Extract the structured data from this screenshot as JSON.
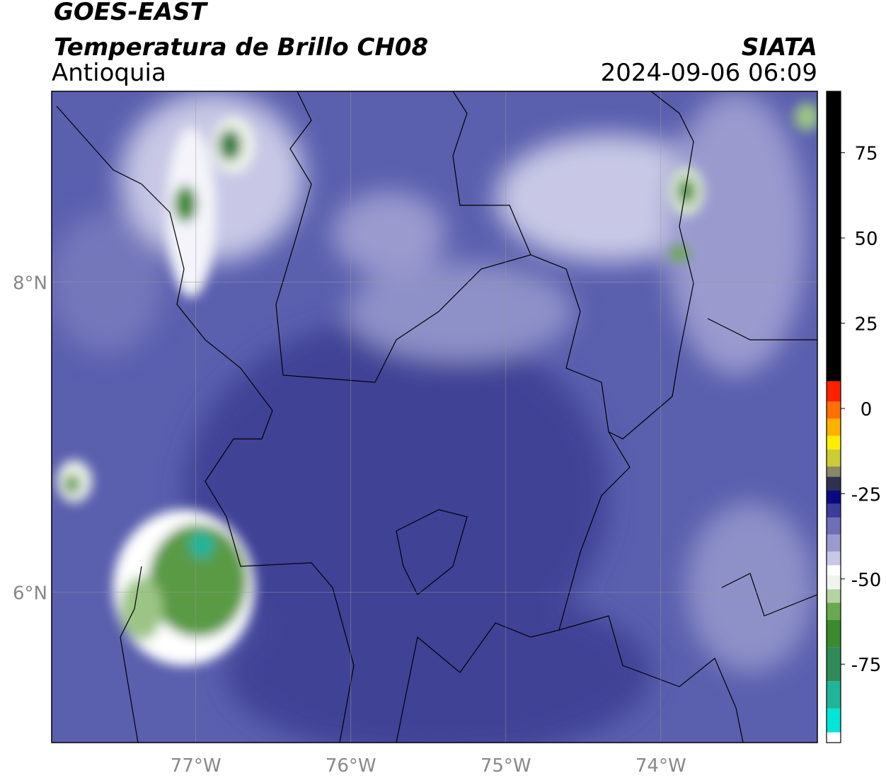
{
  "header": {
    "title": "GOES-EAST",
    "subtitle": "Temperatura de Brillo CH08",
    "region": "Antioquia",
    "source": "SIATA",
    "timestamp": "2024-09-06 06:09"
  },
  "map": {
    "lonlim": [
      -77.93,
      -72.99
    ],
    "latlim": [
      5.03,
      9.23
    ],
    "lonticks": [
      {
        "value": -77,
        "label": "77°W"
      },
      {
        "value": -76,
        "label": "76°W"
      },
      {
        "value": -75,
        "label": "75°W"
      },
      {
        "value": -74,
        "label": "74°W"
      }
    ],
    "latticks": [
      {
        "value": 8,
        "label": "8°N"
      },
      {
        "value": 6,
        "label": "6°N"
      }
    ],
    "grid": true
  },
  "colorbar": {
    "lim": [
      -98,
      93
    ],
    "ticks": [
      75,
      50,
      25,
      0,
      -25,
      -50,
      -75
    ],
    "stops": [
      {
        "value": -98,
        "color": "#ffffff"
      },
      {
        "value": -95,
        "color": "#00e5d8"
      },
      {
        "value": -88,
        "color": "#1fb59a"
      },
      {
        "value": -80,
        "color": "#2e8b57"
      },
      {
        "value": -70,
        "color": "#3a8a2e"
      },
      {
        "value": -62,
        "color": "#6aa84f"
      },
      {
        "value": -57,
        "color": "#b5d3a0"
      },
      {
        "value": -53,
        "color": "#f0f4ee"
      },
      {
        "value": -49,
        "color": "#ffffff"
      },
      {
        "value": -46,
        "color": "#c8c8e6"
      },
      {
        "value": -42,
        "color": "#9a9acf"
      },
      {
        "value": -37,
        "color": "#6f6fb8"
      },
      {
        "value": -32,
        "color": "#3c3c9a"
      },
      {
        "value": -28,
        "color": "#0a0a80"
      },
      {
        "value": -24,
        "color": "#303050"
      },
      {
        "value": -20,
        "color": "#888866"
      },
      {
        "value": -17,
        "color": "#cccc33"
      },
      {
        "value": -12,
        "color": "#ffee00"
      },
      {
        "value": -8,
        "color": "#ffb000"
      },
      {
        "value": -3,
        "color": "#ff7000"
      },
      {
        "value": 2,
        "color": "#ff2000"
      },
      {
        "value": 8,
        "color": "#000000"
      }
    ]
  }
}
